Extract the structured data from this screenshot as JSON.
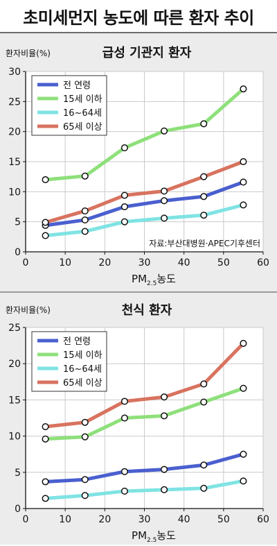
{
  "page": {
    "title": "초미세먼지 농도에 따른 환자 추이"
  },
  "chart_data": [
    {
      "type": "line",
      "title": "급성 기관지 환자",
      "ylabel": "환자비율(%)",
      "xlabel_main": "PM",
      "xlabel_sub": "2.5",
      "xlabel_suffix": "농도",
      "xlim": [
        0,
        60
      ],
      "ylim": [
        0,
        30
      ],
      "xticks": [
        0,
        10,
        20,
        30,
        40,
        50,
        60
      ],
      "yticks": [
        0,
        5,
        10,
        15,
        20,
        25,
        30
      ],
      "grid": true,
      "legend_position": "top-left",
      "source": "자료:부산대병원·APEC기후센터",
      "x": [
        5,
        15,
        25,
        35,
        45,
        55
      ],
      "series": [
        {
          "name": "전 연령",
          "color": "#4a5fcf",
          "values": [
            4.4,
            5.3,
            7.5,
            8.5,
            9.2,
            11.6
          ]
        },
        {
          "name": "15세 이하",
          "color": "#8ee07a",
          "values": [
            12.0,
            12.6,
            17.3,
            20.1,
            21.3,
            27.1
          ]
        },
        {
          "name": "16~64세",
          "color": "#7fe3e3",
          "values": [
            2.7,
            3.4,
            5.0,
            5.6,
            6.1,
            7.8
          ]
        },
        {
          "name": "65세 이상",
          "color": "#d8735f",
          "values": [
            4.9,
            6.8,
            9.4,
            10.1,
            12.5,
            15.0
          ]
        }
      ]
    },
    {
      "type": "line",
      "title": "천식 환자",
      "ylabel": "환자비율(%)",
      "xlabel_main": "PM",
      "xlabel_sub": "2.5",
      "xlabel_suffix": "농도",
      "xlim": [
        0,
        60
      ],
      "ylim": [
        0,
        25
      ],
      "xticks": [
        0,
        10,
        20,
        30,
        40,
        50,
        60
      ],
      "yticks": [
        0,
        5,
        10,
        15,
        20,
        25
      ],
      "grid": true,
      "legend_position": "top-left",
      "x": [
        5,
        15,
        25,
        35,
        45,
        55
      ],
      "series": [
        {
          "name": "전 연령",
          "color": "#4a5fcf",
          "values": [
            3.7,
            4.0,
            5.1,
            5.4,
            6.0,
            7.5
          ]
        },
        {
          "name": "15세 이하",
          "color": "#8ee07a",
          "values": [
            9.6,
            9.9,
            12.5,
            12.8,
            14.7,
            16.6
          ]
        },
        {
          "name": "16~64세",
          "color": "#7fe3e3",
          "values": [
            1.4,
            1.8,
            2.4,
            2.6,
            2.8,
            3.8
          ]
        },
        {
          "name": "65세 이상",
          "color": "#d8735f",
          "values": [
            11.3,
            11.9,
            14.8,
            15.4,
            17.2,
            22.8
          ]
        }
      ]
    }
  ]
}
